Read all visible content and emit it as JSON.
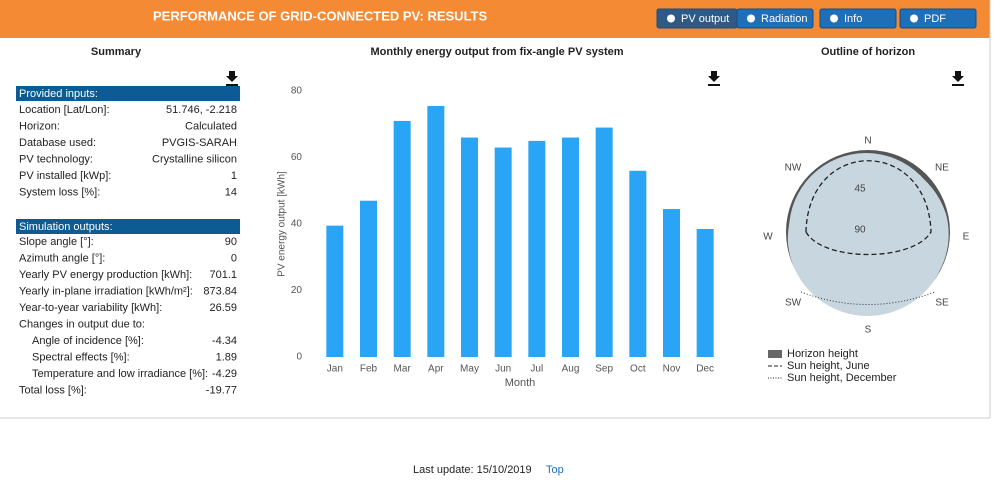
{
  "header": {
    "title": "PERFORMANCE OF GRID-CONNECTED PV: RESULTS",
    "buttons": [
      "PV output",
      "Radiation",
      "Info",
      "PDF"
    ]
  },
  "summary": {
    "title": "Summary",
    "inputs": {
      "heading": "Provided inputs:",
      "rows": [
        [
          "Location [Lat/Lon]:",
          "51.746, -2.218"
        ],
        [
          "Horizon:",
          "Calculated"
        ],
        [
          "Database used:",
          "PVGIS-SARAH"
        ],
        [
          "PV technology:",
          "Crystalline silicon"
        ],
        [
          "PV installed [kWp]:",
          "1"
        ],
        [
          "System loss [%]:",
          "14"
        ]
      ]
    },
    "outputs": {
      "heading": "Simulation outputs:",
      "rows": [
        [
          "Slope angle [°]:",
          "90"
        ],
        [
          "Azimuth angle [°]:",
          "0"
        ],
        [
          "Yearly PV energy production [kWh]:",
          "701.1"
        ],
        [
          "Yearly in-plane irradiation [kWh/m²]:",
          "873.84"
        ],
        [
          "Year-to-year variability [kWh]:",
          "26.59"
        ]
      ],
      "changes": {
        "label": "Changes in output due to:",
        "rows": [
          [
            "Angle of incidence [%]:",
            "-4.34"
          ],
          [
            "Spectral effects [%]:",
            "1.89"
          ],
          [
            "Temperature and low irradiance [%]:",
            "-4.29"
          ]
        ]
      },
      "total": [
        "Total loss [%]:",
        "-19.77"
      ]
    }
  },
  "chart_data": {
    "type": "bar",
    "title": "Monthly energy output from fix-angle PV system",
    "x_label": "Month",
    "y_label": "PV energy output [kWh]",
    "categories": [
      "Jan",
      "Feb",
      "Mar",
      "Apr",
      "May",
      "Jun",
      "Jul",
      "Aug",
      "Sep",
      "Oct",
      "Nov",
      "Dec"
    ],
    "values": [
      39.5,
      47,
      71,
      75.5,
      66,
      63,
      65,
      66,
      69,
      56,
      44.5,
      38.5
    ],
    "color": "#2aa5f5",
    "ylim": [
      0,
      80
    ],
    "yticks": [
      0,
      20,
      40,
      60,
      80
    ],
    "grid": false
  },
  "horizon": {
    "title": "Outline of horizon",
    "directions": [
      "N",
      "NE",
      "E",
      "SE",
      "S",
      "SW",
      "W",
      "NW"
    ],
    "rings": [
      "45",
      "90"
    ],
    "legend": [
      "Horizon height",
      "Sun height, June",
      "Sun height, December"
    ]
  },
  "footer": {
    "text": "Last update: 15/10/2019",
    "link": "Top"
  }
}
